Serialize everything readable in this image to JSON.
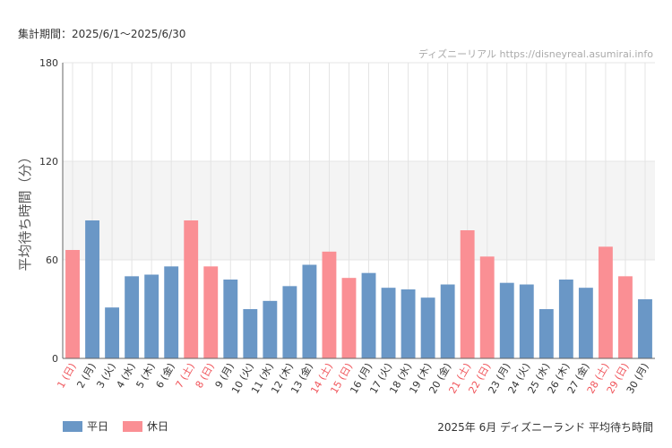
{
  "header": {
    "period": "集計期間：2025/6/1～2025/6/30",
    "watermark": "ディズニーリアル https://disneyreal.asumirai.info"
  },
  "colors": {
    "weekday": "#6a97c6",
    "holiday": "#fa8f94",
    "holiday_text": "#f0555b",
    "band": "#f4f4f4",
    "grid": "#e4e4e4"
  },
  "chart_data": {
    "type": "bar",
    "title": "2025年 6月 ディズニーランド 平均待ち時間",
    "ylabel": "平均待ち時間（分）",
    "xlabel": "",
    "ylim": [
      0,
      180
    ],
    "yticks": [
      "0",
      "60",
      "120",
      "180"
    ],
    "shaded_range": [
      60,
      120
    ],
    "categories": [
      "1 (日)",
      "2 (月)",
      "3 (火)",
      "4 (水)",
      "5 (木)",
      "6 (金)",
      "7 (土)",
      "8 (日)",
      "9 (月)",
      "10 (火)",
      "11 (水)",
      "12 (木)",
      "13 (金)",
      "14 (土)",
      "15 (日)",
      "16 (月)",
      "17 (火)",
      "18 (水)",
      "19 (木)",
      "20 (金)",
      "21 (土)",
      "22 (日)",
      "23 (月)",
      "24 (火)",
      "25 (水)",
      "26 (木)",
      "27 (金)",
      "28 (土)",
      "29 (日)",
      "30 (月)"
    ],
    "values": [
      66,
      84,
      31,
      50,
      51,
      56,
      84,
      56,
      48,
      30,
      35,
      44,
      57,
      65,
      49,
      52,
      43,
      42,
      37,
      45,
      78,
      62,
      46,
      45,
      30,
      48,
      43,
      68,
      50,
      36
    ],
    "holiday": [
      true,
      false,
      false,
      false,
      false,
      false,
      true,
      true,
      false,
      false,
      false,
      false,
      false,
      true,
      true,
      false,
      false,
      false,
      false,
      false,
      true,
      true,
      false,
      false,
      false,
      false,
      false,
      true,
      true,
      false
    ],
    "legend": [
      "平日",
      "休日"
    ]
  }
}
